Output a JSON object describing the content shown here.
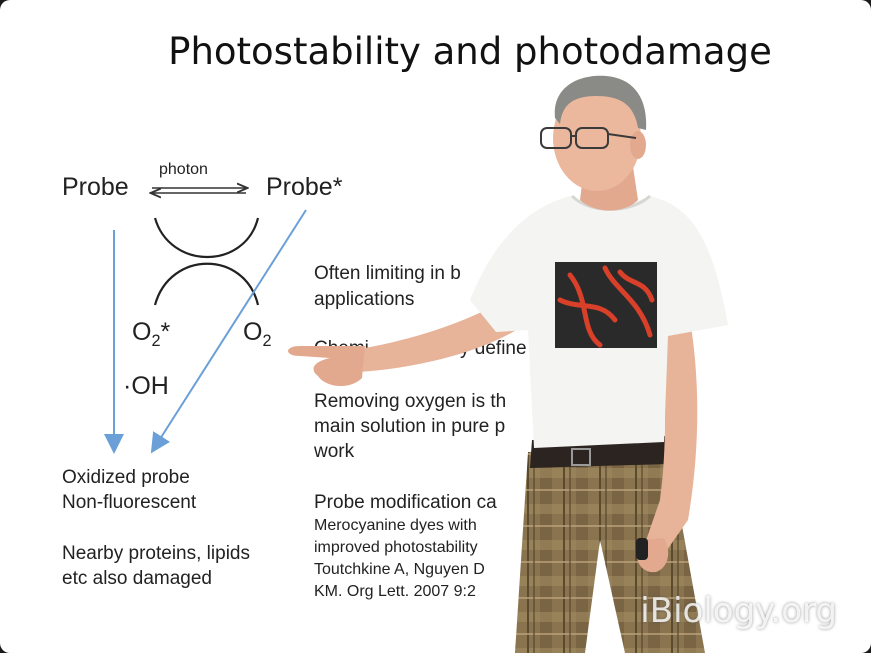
{
  "slide": {
    "title": "Photostability and photodamage",
    "diagram": {
      "probe": "Probe",
      "photon": "photon",
      "probe_excited": "Probe*",
      "o2_excited_base": "O",
      "o2_excited_sub": "2",
      "o2_excited_sup": "*",
      "hydroxyl": "·OH",
      "o2_base": "O",
      "o2_sub": "2",
      "oxidized_line1": "Oxidized probe",
      "oxidized_line2": "Non-fluorescent",
      "nearby_line1": "Nearby proteins, lipids",
      "nearby_line2": "etc also damaged",
      "arrow_color": "#6a9fd8"
    },
    "bullets": {
      "b1_line1": "Often limiting in b",
      "b1_line2": "applications",
      "b2_line1": "Chemi",
      "b2_line1_end": "y define",
      "b3_line1": "Removing oxygen is th",
      "b3_line2": "main solution in pure p",
      "b3_line3": "work",
      "b4_line1": "Probe modification ca",
      "ref_line1": "Merocyanine dyes with",
      "ref_line2": "improved photostability",
      "ref_line3": "Toutchkine A, Nguyen D",
      "ref_line4": "KM. Org Lett. 2007 9:2"
    }
  },
  "watermark": "iBiology.org"
}
